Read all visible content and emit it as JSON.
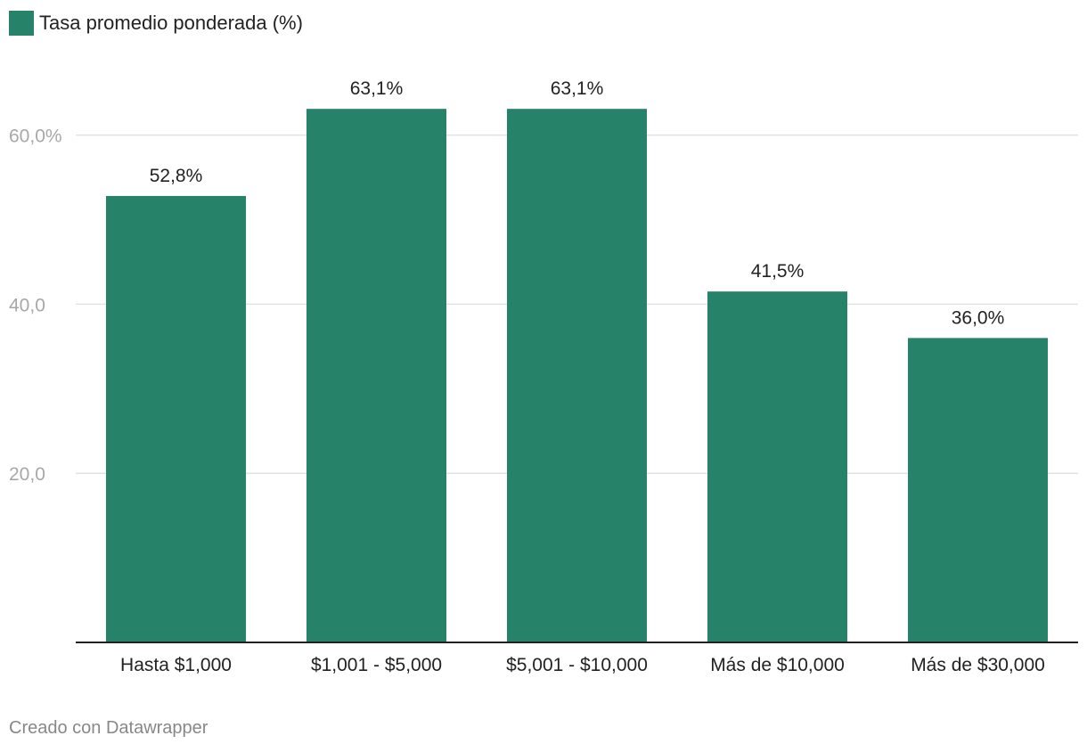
{
  "chart_data": {
    "type": "bar",
    "categories": [
      "Hasta $1,000",
      "$1,001 - $5,000",
      "$5,001 - $10,000",
      "Más de $10,000",
      "Más de $30,000"
    ],
    "series": [
      {
        "name": "Tasa promedio ponderada (%)",
        "values": [
          52.8,
          63.1,
          63.1,
          41.5,
          36.0
        ],
        "value_labels": [
          "52,8%",
          "63,1%",
          "63,1%",
          "41,5%",
          "36,0%"
        ]
      }
    ],
    "y_ticks": [
      {
        "value": 20,
        "label": "20,0"
      },
      {
        "value": 40,
        "label": "40,0"
      },
      {
        "value": 60,
        "label": "60,0%"
      }
    ],
    "ylim": [
      0,
      75
    ],
    "grid": true,
    "legend_position": "top-left",
    "bar_color": "#268268",
    "xlabel": "",
    "ylabel": ""
  },
  "footer": {
    "credit": "Creado con Datawrapper"
  }
}
